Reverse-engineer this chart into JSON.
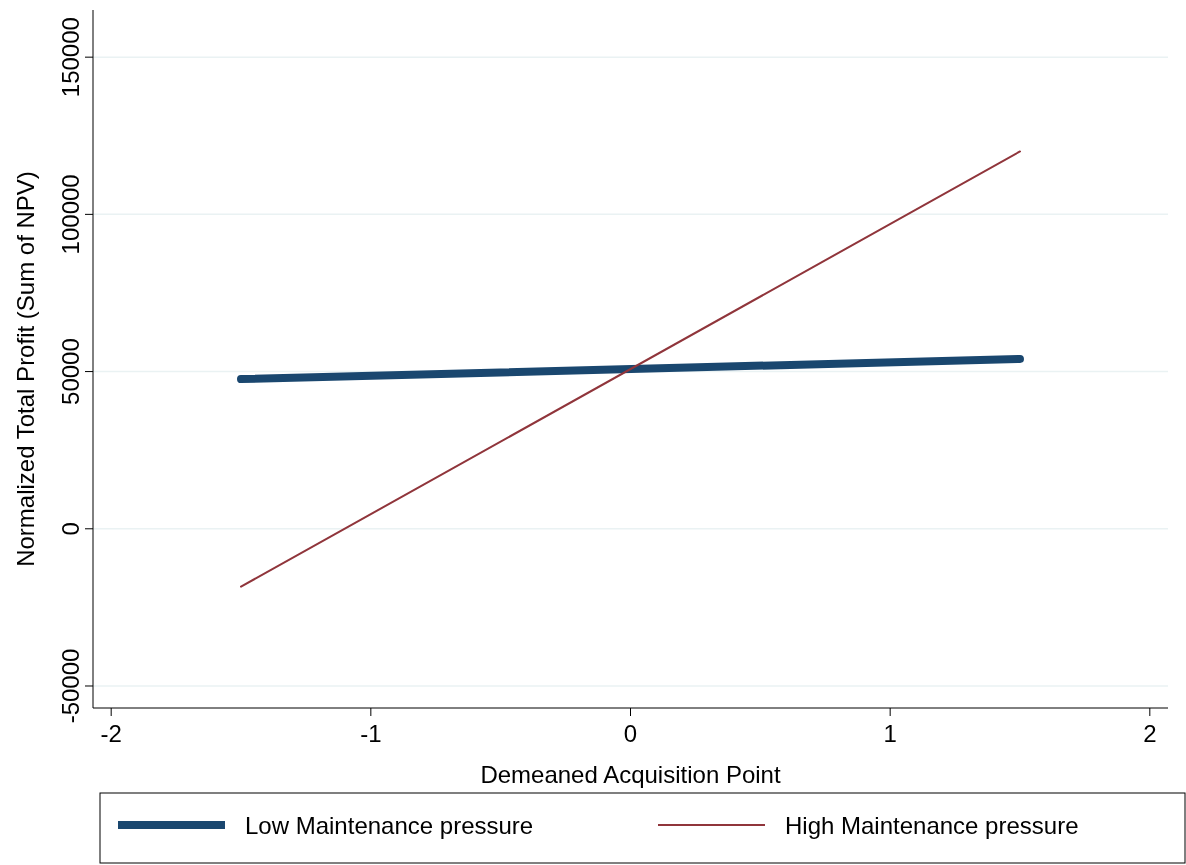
{
  "chart_data": {
    "type": "line",
    "xlabel": "Demeaned Acquisition Point",
    "ylabel": "Normalized Total Profit (Sum of NPV)",
    "x": [
      -1.5,
      1.5
    ],
    "series": [
      {
        "name": "Low Maintenance pressure",
        "color": "#1a476f",
        "values": [
          47600,
          54000
        ]
      },
      {
        "name": "High Maintenance pressure",
        "color": "#90353b",
        "values": [
          -18400,
          120000
        ]
      }
    ],
    "xlim": [
      -2.07,
      2.07
    ],
    "xticks": [
      -2,
      -1,
      0,
      1,
      2
    ],
    "ylim": [
      -57000,
      165000
    ],
    "yticks": [
      -50000,
      0,
      50000,
      100000,
      150000
    ],
    "grid": "y",
    "legend": "bottom",
    "marker": "none",
    "line_style": "solid"
  }
}
